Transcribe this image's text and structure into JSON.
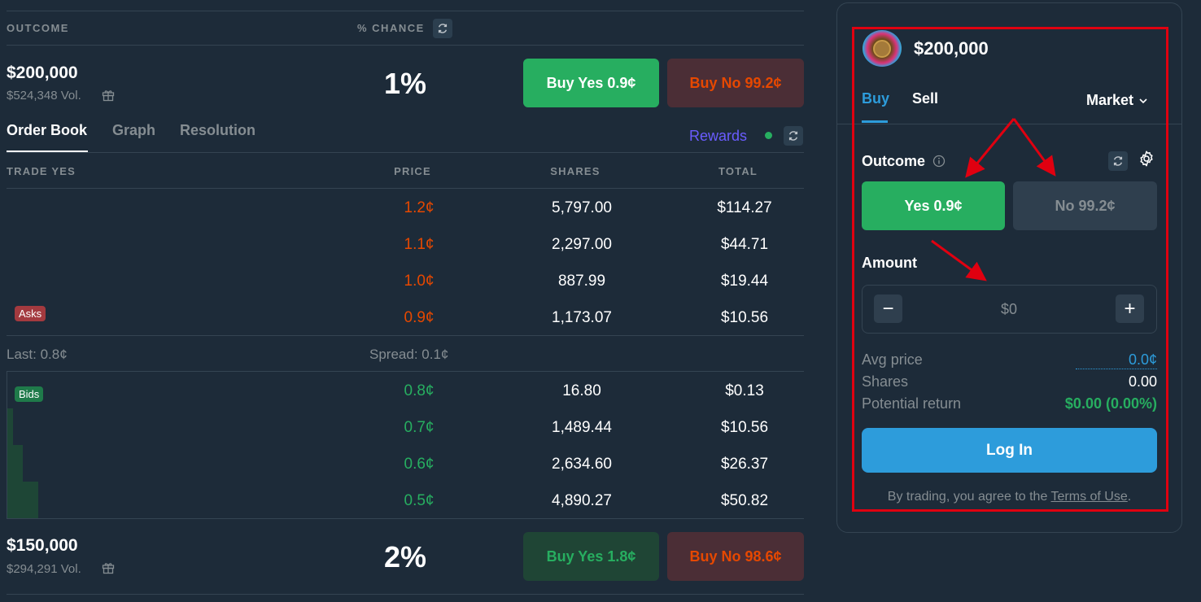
{
  "header": {
    "outcome_label": "OUTCOME",
    "chance_label": "% CHANCE"
  },
  "markets": [
    {
      "name": "$200,000",
      "volume": "$524,348 Vol.",
      "chance": "1%",
      "buy_yes": "Buy Yes 0.9¢",
      "buy_no": "Buy No 99.2¢"
    },
    {
      "name": "$150,000",
      "volume": "$294,291 Vol.",
      "chance": "2%",
      "buy_yes": "Buy Yes 1.8¢",
      "buy_no": "Buy No 98.6¢"
    }
  ],
  "tabs": [
    "Order Book",
    "Graph",
    "Resolution"
  ],
  "rewards_label": "Rewards",
  "orderbook": {
    "headers": [
      "TRADE YES",
      "PRICE",
      "SHARES",
      "TOTAL"
    ],
    "asks_label": "Asks",
    "bids_label": "Bids",
    "asks": [
      {
        "price": "1.2¢",
        "shares": "5,797.00",
        "total": "$114.27"
      },
      {
        "price": "1.1¢",
        "shares": "2,297.00",
        "total": "$44.71"
      },
      {
        "price": "1.0¢",
        "shares": "887.99",
        "total": "$19.44"
      },
      {
        "price": "0.9¢",
        "shares": "1,173.07",
        "total": "$10.56"
      }
    ],
    "last": "Last: 0.8¢",
    "spread": "Spread: 0.1¢",
    "bids": [
      {
        "price": "0.8¢",
        "shares": "16.80",
        "total": "$0.13"
      },
      {
        "price": "0.7¢",
        "shares": "1,489.44",
        "total": "$10.56"
      },
      {
        "price": "0.6¢",
        "shares": "2,634.60",
        "total": "$26.37"
      },
      {
        "price": "0.5¢",
        "shares": "4,890.27",
        "total": "$50.82"
      }
    ]
  },
  "trade_panel": {
    "title": "$200,000",
    "tab_buy": "Buy",
    "tab_sell": "Sell",
    "order_type": "Market",
    "outcome_label": "Outcome",
    "yes_btn": "Yes 0.9¢",
    "no_btn": "No 99.2¢",
    "amount_label": "Amount",
    "amount_value": "$0",
    "minus": "−",
    "plus": "+",
    "avg_price_label": "Avg price",
    "avg_price_value": "0.0¢",
    "shares_label": "Shares",
    "shares_value": "0.00",
    "return_label": "Potential return",
    "return_value": "$0.00 (0.00%)",
    "login_btn": "Log In",
    "terms_prefix": "By trading, you agree to the ",
    "terms_link": "Terms of Use",
    "terms_suffix": "."
  },
  "colors": {
    "background": "#1d2b39",
    "yes_green": "#27ae60",
    "no_orange": "#e64800",
    "accent_blue": "#2d9cdb",
    "annotation_red": "#e00010"
  },
  "icons": {
    "refresh": "refresh-icon",
    "gift": "gift-icon",
    "info": "info-icon",
    "settings": "gear-icon",
    "chevron": "chevron-down-icon"
  }
}
